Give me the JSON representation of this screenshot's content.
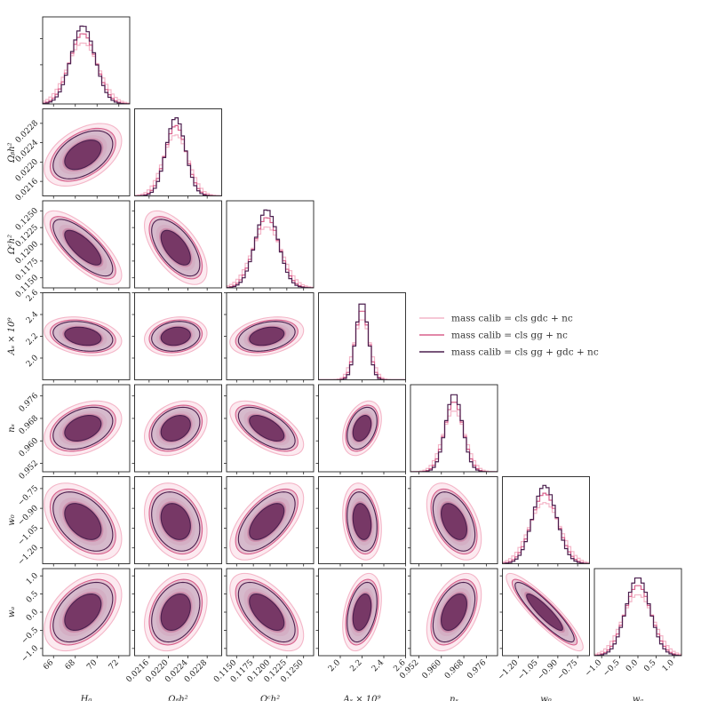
{
  "chart_data": {
    "type": "corner",
    "params": [
      {
        "key": "H0",
        "label": "H₀",
        "range": [
          65,
          73
        ],
        "mean": 68.7,
        "sd": 1.1,
        "ticks": [
          66,
          68,
          70,
          72
        ]
      },
      {
        "key": "obh2",
        "label": "Ωᵦh²",
        "range": [
          0.0213,
          0.0231
        ],
        "mean": 0.02215,
        "sd": 0.0002,
        "ticks": [
          0.0216,
          0.022,
          0.0224,
          0.0228
        ]
      },
      {
        "key": "och2",
        "label": "Ωᶜh²",
        "range": [
          0.1135,
          0.1265
        ],
        "mean": 0.1195,
        "sd": 0.0017,
        "ticks": [
          0.115,
          0.1175,
          0.12,
          0.1225,
          0.125
        ]
      },
      {
        "key": "As",
        "label": "Aₛ × 10⁹",
        "range": [
          1.8,
          2.6
        ],
        "mean": 2.2,
        "sd": 0.055,
        "ticks": [
          2.0,
          2.2,
          2.4,
          2.6
        ]
      },
      {
        "key": "ns",
        "label": "nₛ",
        "range": [
          0.949,
          0.98
        ],
        "mean": 0.9645,
        "sd": 0.003,
        "ticks": [
          0.952,
          0.96,
          0.968,
          0.976
        ]
      },
      {
        "key": "w0",
        "label": "w₀",
        "range": [
          -1.32,
          -0.66
        ],
        "mean": -1.0,
        "sd": 0.09,
        "ticks": [
          -1.2,
          -1.05,
          -0.9,
          -0.75
        ]
      },
      {
        "key": "wa",
        "label": "wₐ",
        "range": [
          -1.2,
          1.2
        ],
        "mean": 0.0,
        "sd": 0.33,
        "ticks": [
          -1.0,
          -0.5,
          0.0,
          0.5,
          1.0
        ]
      }
    ],
    "tick_text": {
      "H0": [
        "66",
        "68",
        "70",
        "72"
      ],
      "obh2": [
        "0.0216",
        "0.0220",
        "0.0224",
        "0.0228"
      ],
      "och2": [
        "0.1150",
        "0.1175",
        "0.1200",
        "0.1225",
        "0.1250"
      ],
      "As": [
        "2.0",
        "2.2",
        "2.4",
        "2.6"
      ],
      "ns": [
        "0.952",
        "0.960",
        "0.968",
        "0.976"
      ],
      "w0": [
        "−1.20",
        "−1.05",
        "−0.90",
        "−0.75"
      ],
      "wa": [
        "−1.0",
        "−0.5",
        "0.0",
        "0.5",
        "1.0"
      ]
    },
    "correlations": [
      [
        1,
        0.45,
        -0.75,
        -0.25,
        0.35,
        -0.45,
        0.45
      ],
      [
        0.45,
        1,
        -0.6,
        0.15,
        0.3,
        -0.25,
        0.3
      ],
      [
        -0.75,
        -0.6,
        1,
        0.3,
        -0.6,
        0.6,
        -0.6
      ],
      [
        -0.25,
        0.15,
        0.3,
        1,
        0.35,
        -0.2,
        0.35
      ],
      [
        0.35,
        0.3,
        -0.6,
        0.35,
        1,
        -0.45,
        0.45
      ],
      [
        -0.45,
        -0.25,
        0.6,
        -0.2,
        -0.45,
        1,
        -0.9
      ],
      [
        0.45,
        0.3,
        -0.6,
        0.35,
        0.45,
        -0.9,
        1
      ]
    ],
    "series": [
      {
        "name": "mass calib = cls gdc + nc",
        "color": "#f4b6c8",
        "fill1": "#f9d8e3",
        "fill2": "#efa9c0",
        "width_scale": 1.3,
        "peak_scale": 0.78
      },
      {
        "name": "mass calib = cls gg + nc",
        "color": "#d9608c",
        "fill1": "#d6a4bb",
        "fill2": "#a3436f",
        "width_scale": 1.1,
        "peak_scale": 0.9
      },
      {
        "name": "mass calib = cls gg + gdc + nc",
        "color": "#4b1f4e",
        "fill1": "#c9b3c6",
        "fill2": "#6b2a5c",
        "width_scale": 1.0,
        "peak_scale": 1.0
      }
    ],
    "legend_position": "right"
  }
}
